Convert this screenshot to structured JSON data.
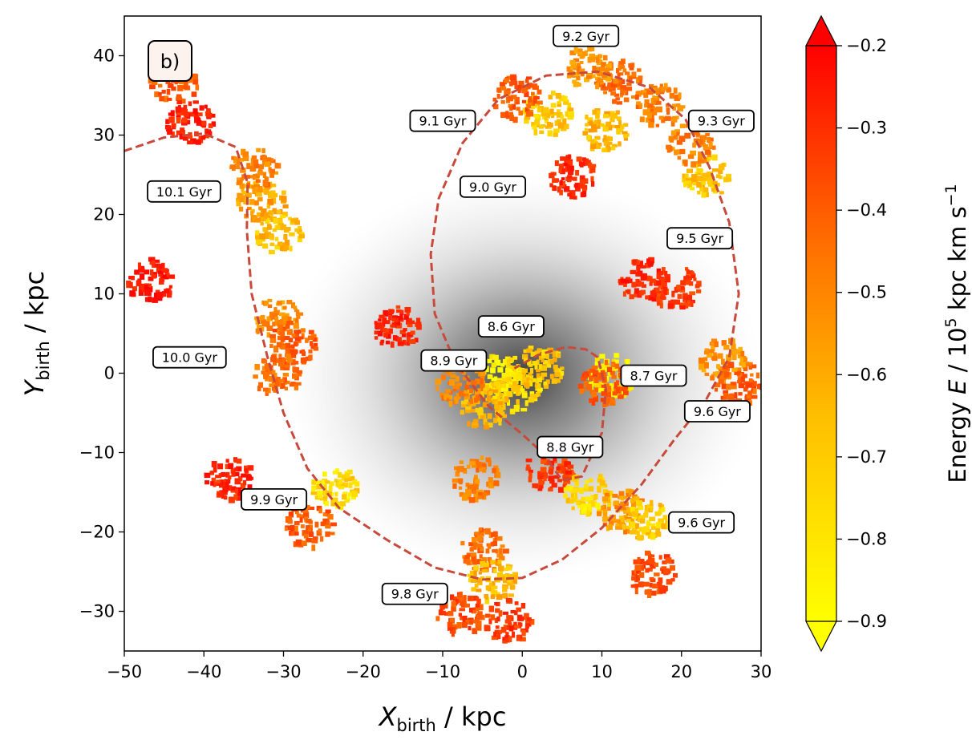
{
  "chart_data": {
    "type": "scatter",
    "panel_label": "b)",
    "xaxis": {
      "label_main": "X",
      "label_sub": "birth",
      "label_unit": " / kpc",
      "range": [
        -50,
        30
      ],
      "ticks": [
        -50,
        -40,
        -30,
        -20,
        -10,
        0,
        10,
        20,
        30
      ],
      "tick_labels": [
        "−50",
        "−40",
        "−30",
        "−20",
        "−10",
        "0",
        "10",
        "20",
        "30"
      ]
    },
    "yaxis": {
      "label_main": "Y",
      "label_sub": "birth",
      "label_unit": " / kpc",
      "range": [
        -35,
        45
      ],
      "ticks": [
        -30,
        -20,
        -10,
        0,
        10,
        20,
        30,
        40
      ],
      "tick_labels": [
        "−30",
        "−20",
        "−10",
        "0",
        "10",
        "20",
        "30",
        "40"
      ]
    },
    "colorbar": {
      "label_prefix": "Energy ",
      "label_var": "E",
      "label_mid": " / 10",
      "label_exp": "5",
      "label_units": " kpc km s",
      "label_units_exp": "−1",
      "range": [
        -0.9,
        -0.2
      ],
      "ticks": [
        -0.9,
        -0.8,
        -0.7,
        -0.6,
        -0.5,
        -0.4,
        -0.3,
        -0.2
      ],
      "tick_labels": [
        "−0.9",
        "−0.8",
        "−0.7",
        "−0.6",
        "−0.5",
        "−0.4",
        "−0.3",
        "−0.2"
      ],
      "colors": [
        "#ffff00",
        "#ff0000"
      ],
      "extend": "both"
    },
    "orbit_track": [
      [
        -50,
        28
      ],
      [
        -45,
        29.7
      ],
      [
        -40,
        30.2
      ],
      [
        -36,
        28.5
      ],
      [
        -34.5,
        24
      ],
      [
        -34.6,
        18
      ],
      [
        -34,
        10
      ],
      [
        -32,
        2
      ],
      [
        -30,
        -5
      ],
      [
        -27,
        -12
      ],
      [
        -23,
        -17
      ],
      [
        -17,
        -21
      ],
      [
        -11,
        -24.5
      ],
      [
        -5,
        -26
      ],
      [
        0,
        -25.8
      ],
      [
        5,
        -23.5
      ],
      [
        10,
        -19.5
      ],
      [
        15,
        -14
      ],
      [
        19,
        -8.5
      ],
      [
        23,
        -3.5
      ],
      [
        26,
        2
      ],
      [
        27.2,
        10
      ],
      [
        26,
        19
      ],
      [
        23.5,
        26
      ],
      [
        20.5,
        32
      ],
      [
        16,
        36
      ],
      [
        9.5,
        38
      ],
      [
        3,
        37.5
      ],
      [
        -3,
        34.5
      ],
      [
        -7.5,
        29
      ],
      [
        -10.5,
        22
      ],
      [
        -11.5,
        15
      ],
      [
        -11,
        7.5
      ],
      [
        -8.5,
        1.5
      ],
      [
        -4.2,
        -4.2
      ],
      [
        0,
        -7.7
      ],
      [
        2.5,
        -10
      ],
      [
        5,
        -13.5
      ],
      [
        7.5,
        -13
      ],
      [
        10,
        -7.5
      ],
      [
        10.5,
        -2
      ],
      [
        9.5,
        2
      ],
      [
        8,
        3
      ],
      [
        5.5,
        3.3
      ],
      [
        2,
        2.3
      ],
      [
        -1,
        0.6
      ]
    ],
    "age_labels": [
      {
        "text": "9.2 Gyr",
        "x": 8.0,
        "y": 42.5
      },
      {
        "text": "9.1 Gyr",
        "x": -10.0,
        "y": 31.8
      },
      {
        "text": "9.3 Gyr",
        "x": 25.0,
        "y": 31.8
      },
      {
        "text": "10.1 Gyr",
        "x": -42.5,
        "y": 22.9
      },
      {
        "text": "9.0 Gyr",
        "x": -3.7,
        "y": 23.5
      },
      {
        "text": "9.5 Gyr",
        "x": 22.3,
        "y": 17.0
      },
      {
        "text": "8.6 Gyr",
        "x": -1.4,
        "y": 5.9
      },
      {
        "text": "10.0 Gyr",
        "x": -41.8,
        "y": 2.0
      },
      {
        "text": "8.9 Gyr",
        "x": -8.6,
        "y": 1.6
      },
      {
        "text": "8.7 Gyr",
        "x": 16.5,
        "y": -0.3
      },
      {
        "text": "9.6 Gyr",
        "x": 24.5,
        "y": -4.8
      },
      {
        "text": "8.8 Gyr",
        "x": 6.0,
        "y": -9.3
      },
      {
        "text": "9.9 Gyr",
        "x": -31.2,
        "y": -15.9
      },
      {
        "text": "9.6 Gyr",
        "x": 22.5,
        "y": -18.8
      },
      {
        "text": "9.8 Gyr",
        "x": -13.5,
        "y": -27.8
      }
    ],
    "clumps": [
      {
        "x": -33,
        "y": 22,
        "e": -0.65
      },
      {
        "x": -31,
        "y": 18,
        "e": -0.72
      },
      {
        "x": -34,
        "y": 26,
        "e": -0.55
      },
      {
        "x": -31,
        "y": 7,
        "e": -0.6
      },
      {
        "x": -29,
        "y": 4,
        "e": -0.45
      },
      {
        "x": -31,
        "y": 0,
        "e": -0.5
      },
      {
        "x": -44,
        "y": 37,
        "e": -0.45
      },
      {
        "x": -42,
        "y": 32,
        "e": -0.3
      },
      {
        "x": -47,
        "y": 12,
        "e": -0.25
      },
      {
        "x": -37,
        "y": -13,
        "e": -0.3
      },
      {
        "x": -24,
        "y": -14,
        "e": -0.8
      },
      {
        "x": -27,
        "y": -19,
        "e": -0.45
      },
      {
        "x": -5,
        "y": -22,
        "e": -0.5
      },
      {
        "x": -4,
        "y": -26,
        "e": -0.7
      },
      {
        "x": -8,
        "y": -30,
        "e": -0.4
      },
      {
        "x": -2,
        "y": -31,
        "e": -0.35
      },
      {
        "x": -6,
        "y": -13,
        "e": -0.55
      },
      {
        "x": 3,
        "y": -12,
        "e": -0.35
      },
      {
        "x": 8,
        "y": -15,
        "e": -0.8
      },
      {
        "x": 12,
        "y": -17,
        "e": -0.6
      },
      {
        "x": 15,
        "y": -18,
        "e": -0.75
      },
      {
        "x": 16,
        "y": -25,
        "e": -0.4
      },
      {
        "x": 25,
        "y": 2,
        "e": -0.6
      },
      {
        "x": 27,
        "y": -1,
        "e": -0.45
      },
      {
        "x": 23,
        "y": 25,
        "e": -0.75
      },
      {
        "x": 21,
        "y": 29,
        "e": -0.55
      },
      {
        "x": 17,
        "y": 34,
        "e": -0.55
      },
      {
        "x": 12,
        "y": 37,
        "e": -0.5
      },
      {
        "x": 8,
        "y": 39,
        "e": -0.6
      },
      {
        "x": 3,
        "y": 33,
        "e": -0.75
      },
      {
        "x": -1,
        "y": 35,
        "e": -0.45
      },
      {
        "x": 10,
        "y": 31,
        "e": -0.7
      },
      {
        "x": 6,
        "y": 25,
        "e": -0.3
      },
      {
        "x": 15,
        "y": 12,
        "e": -0.3
      },
      {
        "x": 19,
        "y": 11,
        "e": -0.35
      },
      {
        "x": -3,
        "y": 0,
        "e": -0.85
      },
      {
        "x": -1,
        "y": -2,
        "e": -0.8
      },
      {
        "x": 2,
        "y": 1,
        "e": -0.75
      },
      {
        "x": -5,
        "y": -4,
        "e": -0.7
      },
      {
        "x": -8,
        "y": -1,
        "e": -0.55
      },
      {
        "x": 11,
        "y": 0,
        "e": -0.85
      },
      {
        "x": -16,
        "y": 6,
        "e": -0.3
      },
      {
        "x": 10,
        "y": -1,
        "e": -0.45
      }
    ]
  }
}
